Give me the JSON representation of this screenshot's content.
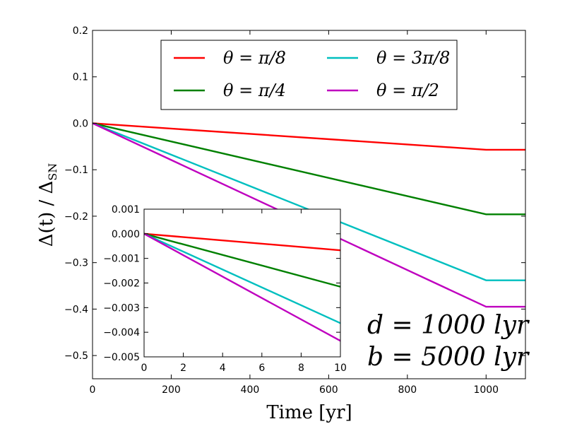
{
  "chart_data": {
    "type": "line",
    "main": {
      "xlabel": "Time [yr]",
      "ylabel": "Δ(t) / Δ_SN",
      "ylabel_main": "Δ(t) / Δ",
      "ylabel_sub": "SN",
      "xlim": [
        0,
        1100
      ],
      "ylim": [
        -0.55,
        0.2
      ],
      "xticks": [
        0,
        200,
        400,
        600,
        800,
        1000
      ],
      "xtick_labels": [
        "0",
        "200",
        "400",
        "600",
        "800",
        "1000"
      ],
      "yticks": [
        0.2,
        0.1,
        0.0,
        -0.1,
        -0.2,
        -0.3,
        -0.4,
        -0.5
      ],
      "ytick_labels": [
        "0.2",
        "0.1",
        "0.0",
        "−0.1",
        "−0.2",
        "−0.3",
        "−0.4",
        "−0.5"
      ],
      "series": [
        {
          "name": "θ = π/8",
          "color": "#ff0000",
          "x": [
            0,
            1000,
            1100
          ],
          "y": [
            0.0,
            -0.057,
            -0.057
          ]
        },
        {
          "name": "θ = π/4",
          "color": "#008000",
          "x": [
            0,
            1000,
            1100
          ],
          "y": [
            0.0,
            -0.196,
            -0.196
          ]
        },
        {
          "name": "θ = 3π/8",
          "color": "#00bfbf",
          "x": [
            0,
            1000,
            1100
          ],
          "y": [
            0.0,
            -0.338,
            -0.338
          ]
        },
        {
          "name": "θ = π/2",
          "color": "#bf00bf",
          "x": [
            0,
            1000,
            1100
          ],
          "y": [
            0.0,
            -0.395,
            -0.395
          ]
        }
      ]
    },
    "inset": {
      "xlim": [
        0,
        10
      ],
      "ylim": [
        -0.005,
        0.001
      ],
      "xticks": [
        0,
        2,
        4,
        6,
        8,
        10
      ],
      "xtick_labels": [
        "0",
        "2",
        "4",
        "6",
        "8",
        "10"
      ],
      "yticks": [
        0.001,
        0.0,
        -0.001,
        -0.002,
        -0.003,
        -0.004,
        -0.005
      ],
      "ytick_labels": [
        "0.001",
        "0.000",
        "−0.001",
        "−0.002",
        "−0.003",
        "−0.004",
        "−0.005"
      ],
      "series": [
        {
          "name": "θ = π/8",
          "color": "#ff0000",
          "x": [
            0,
            10
          ],
          "y": [
            0.0,
            -0.00067
          ]
        },
        {
          "name": "θ = π/4",
          "color": "#008000",
          "x": [
            0,
            10
          ],
          "y": [
            0.0,
            -0.00215
          ]
        },
        {
          "name": "θ = 3π/8",
          "color": "#00bfbf",
          "x": [
            0,
            10
          ],
          "y": [
            0.0,
            -0.00363
          ]
        },
        {
          "name": "θ = π/2",
          "color": "#bf00bf",
          "x": [
            0,
            10
          ],
          "y": [
            0.0,
            -0.00435
          ]
        }
      ]
    },
    "legend": {
      "placement": "upper-center",
      "entries": [
        "θ = π/8",
        "θ = π/4",
        "θ = 3π/8",
        "θ = π/2"
      ]
    },
    "annotations": [
      "d = 1000 lyr",
      "b = 5000 lyr"
    ]
  }
}
